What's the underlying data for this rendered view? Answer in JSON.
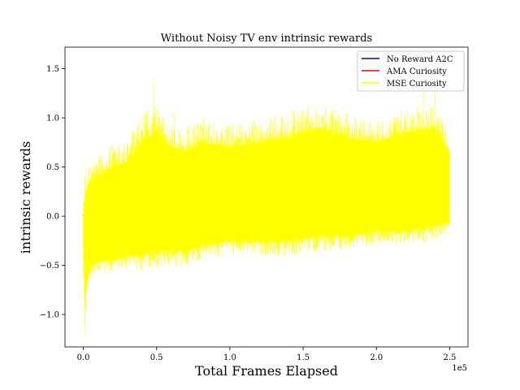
{
  "chart_data": {
    "type": "line",
    "title": "Without Noisy TV env intrinsic rewards",
    "xlabel": "Total Frames Elapsed",
    "ylabel": "intrinsic rewards",
    "x_offset_label": "1e5",
    "xlim": [
      -0.125,
      2.625
    ],
    "ylim": [
      -1.33,
      1.72
    ],
    "x_ticks": [
      {
        "value": 0.0,
        "label": "0.0"
      },
      {
        "value": 0.5,
        "label": "0.5"
      },
      {
        "value": 1.0,
        "label": "1.0"
      },
      {
        "value": 1.5,
        "label": "1.5"
      },
      {
        "value": 2.0,
        "label": "2.0"
      },
      {
        "value": 2.5,
        "label": "2.5"
      }
    ],
    "y_ticks": [
      {
        "value": -1.0,
        "label": "−1.0"
      },
      {
        "value": -0.5,
        "label": "−0.5"
      },
      {
        "value": 0.0,
        "label": "0.0"
      },
      {
        "value": 0.5,
        "label": "0.5"
      },
      {
        "value": 1.0,
        "label": "1.0"
      },
      {
        "value": 1.5,
        "label": "1.5"
      }
    ],
    "grid": false,
    "legend_position": "top-right",
    "series": [
      {
        "name": "No Reward A2C",
        "color": "#0000ff",
        "x": [
          0.0,
          2.5
        ],
        "y": [
          0.0,
          0.0
        ]
      },
      {
        "name": "AMA Curiosity",
        "color": "#ff0000",
        "x": [
          0.0,
          0.02,
          0.4,
          1.0,
          1.5,
          2.1,
          2.3,
          2.45,
          2.5
        ],
        "y": [
          0.02,
          -0.01,
          0.13,
          0.0,
          0.05,
          -0.12,
          -0.1,
          -0.05,
          0.0
        ]
      },
      {
        "name": "MSE Curiosity",
        "color": "#ffff00",
        "band_x": [
          0.0,
          0.01,
          0.02,
          0.05,
          0.1,
          0.2,
          0.3,
          0.4,
          0.5,
          0.6,
          0.7,
          0.8,
          1.0,
          1.2,
          1.4,
          1.6,
          1.8,
          2.0,
          2.2,
          2.4,
          2.5
        ],
        "band_upper": [
          0.0,
          0.15,
          0.25,
          0.35,
          0.4,
          0.5,
          0.55,
          0.75,
          0.85,
          0.7,
          0.65,
          0.75,
          0.7,
          0.75,
          0.8,
          0.9,
          0.8,
          0.75,
          0.85,
          0.9,
          0.65
        ],
        "band_lower": [
          -0.3,
          -0.95,
          -0.7,
          -0.5,
          -0.45,
          -0.45,
          -0.4,
          -0.4,
          -0.35,
          -0.35,
          -0.35,
          -0.3,
          -0.25,
          -0.25,
          -0.25,
          -0.2,
          -0.2,
          -0.15,
          -0.15,
          -0.1,
          -0.05
        ],
        "spikes": [
          {
            "x": 0.01,
            "y": -1.2
          },
          {
            "x": 0.48,
            "y": 1.38
          },
          {
            "x": 0.62,
            "y": 1.05
          },
          {
            "x": 1.52,
            "y": 1.0
          },
          {
            "x": 2.32,
            "y": 1.3
          },
          {
            "x": 2.4,
            "y": 1.3
          }
        ]
      }
    ]
  }
}
